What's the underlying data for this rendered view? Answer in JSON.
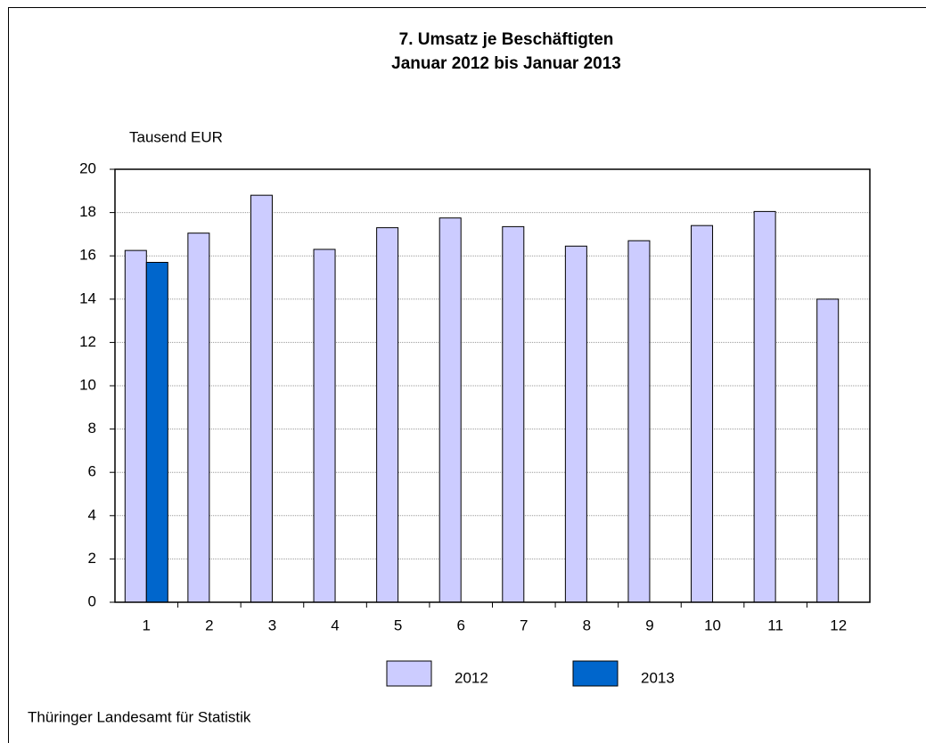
{
  "chart_data": {
    "type": "bar",
    "title": "7. Umsatz je Beschäftigten",
    "subtitle": "Januar 2012 bis Januar 2013",
    "y_label": "Tausend EUR",
    "source": "Thüringer Landesamt für Statistik",
    "categories": [
      "1",
      "2",
      "3",
      "4",
      "5",
      "6",
      "7",
      "8",
      "9",
      "10",
      "11",
      "12"
    ],
    "series": [
      {
        "name": "2012",
        "color": "#ccccff",
        "values": [
          16.25,
          17.05,
          18.8,
          16.3,
          17.3,
          17.75,
          17.35,
          16.45,
          16.7,
          17.4,
          18.05,
          14.0
        ]
      },
      {
        "name": "2013",
        "color": "#0066cc",
        "values": [
          15.7,
          null,
          null,
          null,
          null,
          null,
          null,
          null,
          null,
          null,
          null,
          null
        ]
      }
    ],
    "ylim": [
      0,
      20
    ],
    "yticks": [
      0,
      2,
      4,
      6,
      8,
      10,
      12,
      14,
      16,
      18,
      20
    ],
    "grid": true
  }
}
